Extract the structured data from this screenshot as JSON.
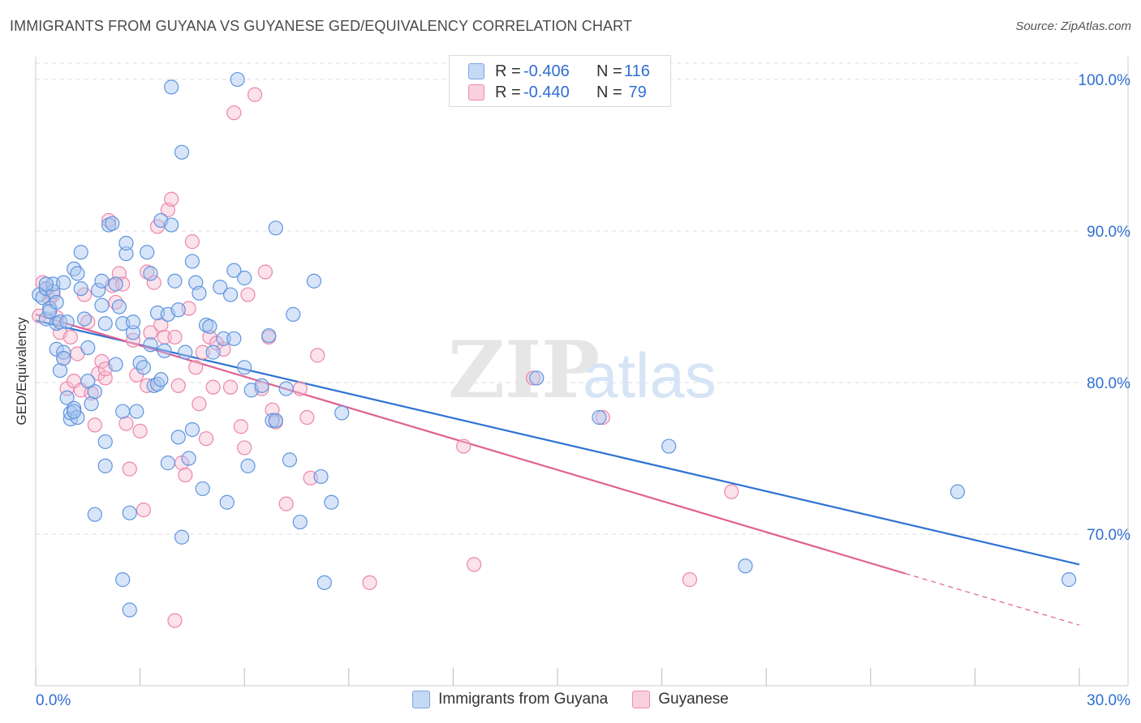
{
  "header": {
    "title": "IMMIGRANTS FROM GUYANA VS GUYANESE GED/EQUIVALENCY CORRELATION CHART",
    "source": "Source: ZipAtlas.com"
  },
  "watermark": {
    "zip": "ZIP",
    "atlas": "atlas"
  },
  "stats_box": {
    "row1": {
      "r_label": "R =",
      "r_value": "-0.406",
      "n_label": "N =",
      "n_value": "116"
    },
    "row2": {
      "r_label": "R =",
      "r_value": "-0.440",
      "n_label": "N =",
      "n_value": " 79"
    }
  },
  "legend": {
    "series1_label": "Immigrants from Guyana",
    "series2_label": "Guyanese"
  },
  "colors": {
    "blue_fill": "#a9c6f0",
    "blue_stroke": "#5f95df",
    "blue_line": "#2e72d2",
    "pink_fill": "#f6bfd2",
    "pink_stroke": "#ec86ab",
    "pink_line": "#e0608f",
    "axis_label": "#2f6fd3",
    "grid": "#dddddd"
  },
  "chart_data": {
    "type": "scatter",
    "title": "IMMIGRANTS FROM GUYANA VS GUYANESE GED/EQUIVALENCY CORRELATION CHART",
    "xlabel": "",
    "ylabel": "GED/Equivalency",
    "xlim": [
      0,
      30
    ],
    "ylim": [
      60,
      101.5
    ],
    "x_tick_labels": [
      "0.0%",
      "30.0%"
    ],
    "y_ticks": [
      70,
      80,
      90,
      100
    ],
    "y_tick_labels": [
      "70.0%",
      "80.0%",
      "90.0%",
      "100.0%"
    ],
    "grid": true,
    "legend_position": "bottom-center",
    "series": [
      {
        "name": "Immigrants from Guyana",
        "color": "#5f95df",
        "r": -0.406,
        "n": 116,
        "trend": {
          "x": [
            0,
            30
          ],
          "y": [
            84.1,
            68.0
          ]
        },
        "points": [
          [
            0.1,
            85.8
          ],
          [
            0.2,
            85.6
          ],
          [
            0.3,
            84.2
          ],
          [
            0.3,
            86.2
          ],
          [
            0.4,
            84.9
          ],
          [
            0.5,
            86.0
          ],
          [
            0.5,
            86.5
          ],
          [
            0.6,
            83.9
          ],
          [
            0.7,
            84.0
          ],
          [
            0.6,
            82.2
          ],
          [
            0.8,
            82.0
          ],
          [
            0.7,
            80.8
          ],
          [
            0.8,
            81.6
          ],
          [
            0.9,
            79.0
          ],
          [
            1.0,
            77.6
          ],
          [
            1.0,
            78.0
          ],
          [
            1.1,
            78.3
          ],
          [
            1.2,
            77.7
          ],
          [
            0.9,
            84.0
          ],
          [
            1.1,
            87.5
          ],
          [
            1.2,
            87.2
          ],
          [
            1.3,
            88.6
          ],
          [
            1.4,
            84.2
          ],
          [
            1.5,
            82.3
          ],
          [
            1.6,
            78.6
          ],
          [
            1.7,
            79.4
          ],
          [
            1.8,
            86.1
          ],
          [
            1.9,
            86.7
          ],
          [
            1.9,
            85.1
          ],
          [
            2.0,
            83.9
          ],
          [
            2.0,
            76.1
          ],
          [
            2.0,
            74.5
          ],
          [
            2.1,
            90.4
          ],
          [
            2.2,
            90.5
          ],
          [
            2.3,
            86.5
          ],
          [
            2.3,
            81.2
          ],
          [
            2.4,
            85.0
          ],
          [
            2.5,
            83.9
          ],
          [
            2.5,
            78.1
          ],
          [
            2.6,
            88.5
          ],
          [
            2.6,
            89.2
          ],
          [
            2.7,
            71.4
          ],
          [
            2.8,
            83.3
          ],
          [
            2.9,
            78.1
          ],
          [
            3.0,
            81.3
          ],
          [
            3.1,
            81.0
          ],
          [
            3.2,
            88.6
          ],
          [
            3.3,
            87.2
          ],
          [
            3.3,
            82.5
          ],
          [
            3.4,
            79.8
          ],
          [
            3.5,
            84.6
          ],
          [
            3.5,
            79.9
          ],
          [
            3.6,
            90.7
          ],
          [
            3.7,
            82.1
          ],
          [
            3.8,
            84.5
          ],
          [
            3.8,
            74.7
          ],
          [
            3.9,
            90.4
          ],
          [
            3.9,
            99.5
          ],
          [
            4.0,
            86.7
          ],
          [
            4.1,
            84.8
          ],
          [
            4.1,
            76.4
          ],
          [
            4.2,
            69.8
          ],
          [
            4.3,
            82.0
          ],
          [
            4.4,
            75.0
          ],
          [
            4.5,
            76.9
          ],
          [
            4.5,
            88.0
          ],
          [
            4.6,
            86.6
          ],
          [
            4.7,
            85.9
          ],
          [
            4.8,
            73.0
          ],
          [
            4.9,
            83.8
          ],
          [
            5.0,
            83.7
          ],
          [
            5.1,
            82.0
          ],
          [
            5.3,
            86.3
          ],
          [
            5.4,
            82.9
          ],
          [
            5.5,
            72.1
          ],
          [
            5.6,
            85.8
          ],
          [
            5.7,
            87.4
          ],
          [
            5.7,
            82.9
          ],
          [
            5.8,
            100.0
          ],
          [
            6.0,
            81.0
          ],
          [
            6.0,
            86.9
          ],
          [
            6.1,
            74.5
          ],
          [
            6.2,
            79.5
          ],
          [
            6.5,
            79.8
          ],
          [
            6.7,
            83.1
          ],
          [
            6.8,
            77.5
          ],
          [
            6.9,
            77.5
          ],
          [
            6.9,
            90.2
          ],
          [
            7.2,
            79.6
          ],
          [
            7.3,
            74.9
          ],
          [
            7.4,
            84.5
          ],
          [
            7.6,
            70.8
          ],
          [
            8.0,
            86.7
          ],
          [
            8.2,
            73.8
          ],
          [
            8.3,
            66.8
          ],
          [
            8.5,
            72.1
          ],
          [
            8.8,
            78.0
          ],
          [
            4.2,
            95.2
          ],
          [
            2.7,
            65.0
          ],
          [
            1.7,
            71.3
          ],
          [
            2.5,
            67.0
          ],
          [
            14.4,
            80.3
          ],
          [
            16.2,
            77.7
          ],
          [
            18.2,
            75.8
          ],
          [
            20.4,
            67.9
          ],
          [
            26.5,
            72.8
          ],
          [
            29.7,
            67.0
          ],
          [
            1.1,
            78.1
          ],
          [
            1.5,
            80.1
          ],
          [
            0.4,
            84.7
          ],
          [
            0.6,
            85.3
          ],
          [
            0.3,
            86.5
          ],
          [
            0.8,
            86.6
          ],
          [
            1.3,
            86.2
          ],
          [
            2.8,
            84.0
          ],
          [
            3.6,
            80.2
          ]
        ]
      },
      {
        "name": "Guyanese",
        "color": "#ec86ab",
        "r": -0.44,
        "n": 79,
        "trend": {
          "x": [
            0,
            25.0
          ],
          "y": [
            84.5,
            67.4
          ]
        },
        "trend_dashed": {
          "x": [
            25.0,
            30
          ],
          "y": [
            67.4,
            64.0
          ]
        },
        "points": [
          [
            0.1,
            84.4
          ],
          [
            0.2,
            86.6
          ],
          [
            0.3,
            86.2
          ],
          [
            0.4,
            85.5
          ],
          [
            0.5,
            85.8
          ],
          [
            0.6,
            84.3
          ],
          [
            0.7,
            83.3
          ],
          [
            0.8,
            81.6
          ],
          [
            0.9,
            79.6
          ],
          [
            1.0,
            83.0
          ],
          [
            1.1,
            80.1
          ],
          [
            1.2,
            81.9
          ],
          [
            1.3,
            79.5
          ],
          [
            1.4,
            85.8
          ],
          [
            1.5,
            84.0
          ],
          [
            1.6,
            79.3
          ],
          [
            1.7,
            77.2
          ],
          [
            1.8,
            80.6
          ],
          [
            1.9,
            81.4
          ],
          [
            2.0,
            80.3
          ],
          [
            2.1,
            90.7
          ],
          [
            2.2,
            86.4
          ],
          [
            2.3,
            85.3
          ],
          [
            2.4,
            87.2
          ],
          [
            2.5,
            86.5
          ],
          [
            2.6,
            77.3
          ],
          [
            2.7,
            74.3
          ],
          [
            2.8,
            82.8
          ],
          [
            2.9,
            80.5
          ],
          [
            3.0,
            76.8
          ],
          [
            3.1,
            71.6
          ],
          [
            3.2,
            79.8
          ],
          [
            3.3,
            83.3
          ],
          [
            3.4,
            86.6
          ],
          [
            3.5,
            90.3
          ],
          [
            3.6,
            83.8
          ],
          [
            3.7,
            83.0
          ],
          [
            3.8,
            91.4
          ],
          [
            3.9,
            92.1
          ],
          [
            4.0,
            83.0
          ],
          [
            4.1,
            79.8
          ],
          [
            4.2,
            74.7
          ],
          [
            4.3,
            73.9
          ],
          [
            4.4,
            84.9
          ],
          [
            4.5,
            89.3
          ],
          [
            4.6,
            81.0
          ],
          [
            4.7,
            78.6
          ],
          [
            4.8,
            82.0
          ],
          [
            4.9,
            76.3
          ],
          [
            5.0,
            83.0
          ],
          [
            5.1,
            79.7
          ],
          [
            5.2,
            82.6
          ],
          [
            5.4,
            82.2
          ],
          [
            5.6,
            79.7
          ],
          [
            5.7,
            97.8
          ],
          [
            5.9,
            77.1
          ],
          [
            6.0,
            75.7
          ],
          [
            6.1,
            85.8
          ],
          [
            6.3,
            99.0
          ],
          [
            6.5,
            79.6
          ],
          [
            6.6,
            87.3
          ],
          [
            6.7,
            83.0
          ],
          [
            6.8,
            78.2
          ],
          [
            6.9,
            77.4
          ],
          [
            7.2,
            72.0
          ],
          [
            7.6,
            79.6
          ],
          [
            7.8,
            77.7
          ],
          [
            7.9,
            73.7
          ],
          [
            8.1,
            81.8
          ],
          [
            2.0,
            80.9
          ],
          [
            9.6,
            66.8
          ],
          [
            12.3,
            75.8
          ],
          [
            12.6,
            68.0
          ],
          [
            14.3,
            80.3
          ],
          [
            16.3,
            77.7
          ],
          [
            18.8,
            67.0
          ],
          [
            20.0,
            72.8
          ],
          [
            4.0,
            64.3
          ],
          [
            3.2,
            87.3
          ]
        ]
      }
    ]
  }
}
